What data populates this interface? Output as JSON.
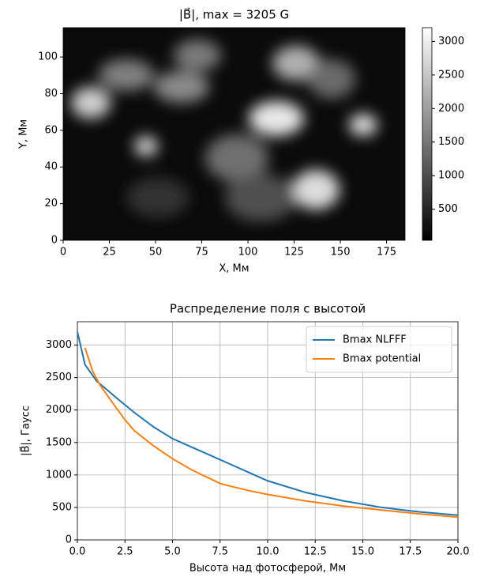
{
  "chart_data": [
    {
      "type": "image",
      "title": "|B⃗|, max = 3205 G",
      "x_label": "X, Мм",
      "y_label": "Y, Мм",
      "xlim": [
        0,
        185
      ],
      "xticks": [
        0,
        25,
        50,
        75,
        100,
        125,
        150,
        175
      ],
      "ylim": [
        0,
        116
      ],
      "yticks": [
        0,
        20,
        40,
        60,
        80,
        100
      ],
      "colormap": "gray",
      "clim": [
        36,
        3205
      ],
      "cticks": [
        500,
        1000,
        1500,
        2000,
        2500,
        3000
      ]
    },
    {
      "type": "line",
      "title": "Распределение поля с высотой",
      "x_label": "Высота над фотосферой, Мм",
      "y_label": "|B⃗|, Гаусс",
      "xlim": [
        0,
        20
      ],
      "xticks": [
        {
          "value": 0,
          "label": "0.0"
        },
        2.5,
        {
          "value": 5,
          "label": "5.0"
        },
        7.5,
        {
          "value": 10,
          "label": "10.0"
        },
        12.5,
        {
          "value": 15,
          "label": "15.0"
        },
        17.5,
        {
          "value": 20,
          "label": "20.0"
        }
      ],
      "ylim": [
        0,
        3360
      ],
      "yticks": [
        0,
        500,
        1000,
        1500,
        2000,
        2500,
        3000
      ],
      "grid": true,
      "legend": "upper right",
      "series": [
        {
          "name": "Bmax NLFFF",
          "color": "#1f77b4",
          "x": [
            0,
            0.4,
            1,
            2,
            3,
            4,
            5,
            6,
            7,
            8,
            9,
            10,
            12,
            14,
            16,
            18,
            20
          ],
          "values": [
            3205,
            2700,
            2450,
            2200,
            1960,
            1740,
            1560,
            1430,
            1300,
            1170,
            1040,
            910,
            730,
            600,
            500,
            430,
            380
          ]
        },
        {
          "name": "Bmax potential",
          "color": "#ff7f0e",
          "x": [
            0.4,
            0.8,
            1.2,
            2,
            2.5,
            3,
            4,
            5,
            6,
            7,
            7.5,
            8,
            9,
            10,
            12,
            14,
            16,
            18,
            20
          ],
          "values": [
            2960,
            2600,
            2380,
            2050,
            1850,
            1680,
            1450,
            1250,
            1080,
            940,
            870,
            830,
            760,
            700,
            600,
            520,
            460,
            400,
            350
          ]
        }
      ]
    }
  ]
}
